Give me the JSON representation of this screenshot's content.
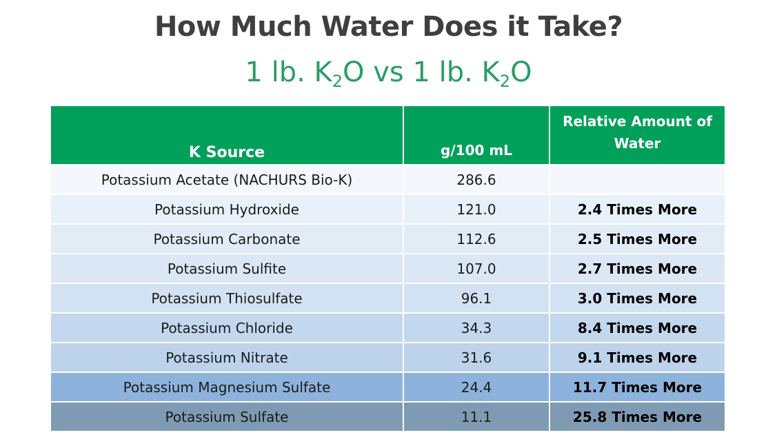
{
  "title": "How Much Water Does it Take?",
  "subtitle": {
    "part1": "1 lb. K",
    "sub1": "2",
    "part2": "O vs 1 lb. K",
    "sub2": "2",
    "part3": "O"
  },
  "table": {
    "headers": [
      "K Source",
      "g/100 mL",
      "Relative Amount of Water"
    ],
    "rows": [
      {
        "source": "Potassium Acetate (NACHURS Bio-K)",
        "g": "286.6",
        "relative": "",
        "color": "#f4f8fc"
      },
      {
        "source": "Potassium Hydroxide",
        "g": "121.0",
        "relative": "2.4 Times More",
        "color": "#e8f0f9"
      },
      {
        "source": "Potassium Carbonate",
        "g": "112.6",
        "relative": "2.5 Times More",
        "color": "#e2ecf7"
      },
      {
        "source": "Potassium Sulfite",
        "g": "107.0",
        "relative": "2.7 Times More",
        "color": "#dbe7f5"
      },
      {
        "source": "Potassium Thiosulfate",
        "g": "96.1",
        "relative": "3.0 Times More",
        "color": "#d3e2f2"
      },
      {
        "source": "Potassium Chloride",
        "g": "34.3",
        "relative": "8.4 Times More",
        "color": "#c3d7ee"
      },
      {
        "source": "Potassium Nitrate",
        "g": "31.6",
        "relative": "9.1 Times More",
        "color": "#bdd3ec"
      },
      {
        "source": "Potassium Magnesium Sulfate",
        "g": "24.4",
        "relative": "11.7 Times More",
        "color": "#8db3dc"
      },
      {
        "source": "Potassium Sulfate",
        "g": "11.1",
        "relative": "25.8 Times More",
        "color": "#7f9bb3"
      }
    ]
  },
  "colors": {
    "header_green": "#00a05a",
    "subtitle_green": "#2a9d66",
    "title_gray": "#3f3f3f"
  }
}
